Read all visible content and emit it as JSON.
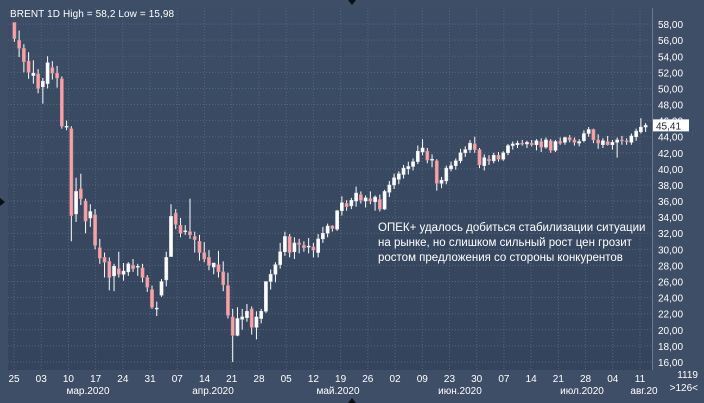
{
  "title": "BRENT 1D High = 58,2 Low = 15,98",
  "annotation": [
    "ОПЕК+ удалось добиться стабилизации ситуации",
    "на рынке, но слишком сильный рост цен грозит",
    "ростом предложения со стороны конкурентов"
  ],
  "footer": {
    "count": "1119",
    "nav": ">126<"
  },
  "colors": {
    "up": "#ffffff",
    "down": "#f4a3a8",
    "wick": "#ffffff",
    "grid": "#56657d",
    "text": "#ffffff",
    "lastPriceBg": "#ffffff"
  },
  "chart_data": {
    "type": "candlestick",
    "title": "BRENT 1D",
    "high": "58,2",
    "low": "15,98",
    "ylim": [
      15.0,
      60.0
    ],
    "y_ticks": [
      "16,00",
      "18,00",
      "20,00",
      "22,00",
      "24,00",
      "26,00",
      "28,00",
      "30,00",
      "32,00",
      "34,00",
      "36,00",
      "38,00",
      "40,00",
      "42,00",
      "44,00",
      "46,00",
      "48,00",
      "50,00",
      "52,00",
      "54,00",
      "56,00",
      "58,00"
    ],
    "last_price_label": "45,41",
    "x_day_ticks": [
      "25",
      "03",
      "10",
      "17",
      "24",
      "31",
      "07",
      "14",
      "21",
      "28",
      "05",
      "12",
      "19",
      "26",
      "02",
      "09",
      "23",
      "30",
      "07",
      "14",
      "21",
      "28",
      "04",
      "11"
    ],
    "x_month_labels": [
      "мар.2020",
      "апр.2020",
      "май.2020",
      "июн.2020",
      "июл.2020",
      "авг.20"
    ],
    "candles": [
      {
        "o": 58.2,
        "h": 58.2,
        "l": 55.8,
        "c": 56.2
      },
      {
        "o": 56.0,
        "h": 57.2,
        "l": 53.9,
        "c": 55.0
      },
      {
        "o": 55.0,
        "h": 55.5,
        "l": 52.0,
        "c": 53.3
      },
      {
        "o": 53.4,
        "h": 54.5,
        "l": 51.2,
        "c": 52.0
      },
      {
        "o": 51.6,
        "h": 53.5,
        "l": 50.6,
        "c": 51.9
      },
      {
        "o": 51.8,
        "h": 52.4,
        "l": 49.4,
        "c": 50.0
      },
      {
        "o": 50.2,
        "h": 51.3,
        "l": 48.1,
        "c": 50.9
      },
      {
        "o": 50.6,
        "h": 54.0,
        "l": 50.0,
        "c": 53.2
      },
      {
        "o": 52.6,
        "h": 53.4,
        "l": 51.1,
        "c": 51.9
      },
      {
        "o": 51.9,
        "h": 52.8,
        "l": 50.1,
        "c": 51.3
      },
      {
        "o": 51.2,
        "h": 51.5,
        "l": 45.0,
        "c": 45.3
      },
      {
        "o": 45.2,
        "h": 46.0,
        "l": 44.8,
        "c": 45.3
      },
      {
        "o": 45.0,
        "h": 45.3,
        "l": 31.0,
        "c": 34.2
      },
      {
        "o": 34.4,
        "h": 38.9,
        "l": 33.4,
        "c": 37.2
      },
      {
        "o": 37.5,
        "h": 39.4,
        "l": 35.5,
        "c": 36.3
      },
      {
        "o": 36.0,
        "h": 36.3,
        "l": 32.0,
        "c": 33.5
      },
      {
        "o": 33.9,
        "h": 35.6,
        "l": 32.8,
        "c": 34.7
      },
      {
        "o": 34.3,
        "h": 35.0,
        "l": 30.0,
        "c": 30.5
      },
      {
        "o": 30.2,
        "h": 31.3,
        "l": 28.2,
        "c": 28.9
      },
      {
        "o": 29.0,
        "h": 29.6,
        "l": 26.5,
        "c": 28.4
      },
      {
        "o": 28.5,
        "h": 29.0,
        "l": 24.9,
        "c": 26.5
      },
      {
        "o": 26.7,
        "h": 28.2,
        "l": 24.8,
        "c": 27.9
      },
      {
        "o": 27.6,
        "h": 29.7,
        "l": 26.5,
        "c": 26.9
      },
      {
        "o": 26.9,
        "h": 28.3,
        "l": 26.1,
        "c": 27.3
      },
      {
        "o": 27.2,
        "h": 28.4,
        "l": 26.7,
        "c": 28.2
      },
      {
        "o": 28.0,
        "h": 28.8,
        "l": 27.2,
        "c": 27.6
      },
      {
        "o": 27.8,
        "h": 28.2,
        "l": 26.7,
        "c": 27.9
      },
      {
        "o": 27.7,
        "h": 28.2,
        "l": 25.9,
        "c": 26.5
      },
      {
        "o": 26.5,
        "h": 26.8,
        "l": 24.7,
        "c": 25.3
      },
      {
        "o": 25.0,
        "h": 25.5,
        "l": 22.6,
        "c": 22.8
      },
      {
        "o": 22.7,
        "h": 23.5,
        "l": 21.7,
        "c": 22.7
      },
      {
        "o": 24.3,
        "h": 26.3,
        "l": 24.1,
        "c": 26.0
      },
      {
        "o": 26.2,
        "h": 29.7,
        "l": 25.4,
        "c": 29.0
      },
      {
        "o": 29.1,
        "h": 35.6,
        "l": 29.1,
        "c": 34.1
      },
      {
        "o": 34.5,
        "h": 35.0,
        "l": 32.5,
        "c": 33.1
      },
      {
        "o": 33.0,
        "h": 33.9,
        "l": 31.5,
        "c": 32.0
      },
      {
        "o": 32.3,
        "h": 33.0,
        "l": 31.8,
        "c": 32.3
      },
      {
        "o": 32.2,
        "h": 36.3,
        "l": 31.3,
        "c": 31.8
      },
      {
        "o": 31.6,
        "h": 32.2,
        "l": 29.6,
        "c": 31.2
      },
      {
        "o": 31.0,
        "h": 31.8,
        "l": 28.6,
        "c": 29.6
      },
      {
        "o": 29.6,
        "h": 30.9,
        "l": 28.4,
        "c": 28.8
      },
      {
        "o": 29.0,
        "h": 29.9,
        "l": 27.4,
        "c": 28.0
      },
      {
        "o": 27.8,
        "h": 28.3,
        "l": 26.9,
        "c": 28.3
      },
      {
        "o": 28.1,
        "h": 29.8,
        "l": 26.5,
        "c": 27.2
      },
      {
        "o": 27.2,
        "h": 28.5,
        "l": 24.8,
        "c": 25.6
      },
      {
        "o": 25.5,
        "h": 27.1,
        "l": 21.4,
        "c": 21.8
      },
      {
        "o": 21.6,
        "h": 22.6,
        "l": 16.0,
        "c": 19.3
      },
      {
        "o": 19.3,
        "h": 22.8,
        "l": 19.2,
        "c": 21.4
      },
      {
        "o": 21.3,
        "h": 22.6,
        "l": 20.0,
        "c": 21.6
      },
      {
        "o": 21.5,
        "h": 23.2,
        "l": 21.0,
        "c": 22.3
      },
      {
        "o": 22.6,
        "h": 22.9,
        "l": 19.4,
        "c": 20.3
      },
      {
        "o": 20.3,
        "h": 22.3,
        "l": 18.8,
        "c": 21.6
      },
      {
        "o": 21.4,
        "h": 22.6,
        "l": 20.8,
        "c": 22.3
      },
      {
        "o": 22.3,
        "h": 26.0,
        "l": 22.1,
        "c": 26.0
      },
      {
        "o": 26.0,
        "h": 27.5,
        "l": 25.0,
        "c": 26.9
      },
      {
        "o": 26.9,
        "h": 28.4,
        "l": 25.9,
        "c": 28.1
      },
      {
        "o": 28.1,
        "h": 30.8,
        "l": 27.6,
        "c": 29.7
      },
      {
        "o": 29.7,
        "h": 32.2,
        "l": 29.2,
        "c": 31.6
      },
      {
        "o": 31.6,
        "h": 31.9,
        "l": 29.0,
        "c": 29.6
      },
      {
        "o": 29.7,
        "h": 31.5,
        "l": 28.8,
        "c": 30.8
      },
      {
        "o": 30.8,
        "h": 31.3,
        "l": 29.5,
        "c": 30.6
      },
      {
        "o": 30.5,
        "h": 31.0,
        "l": 29.7,
        "c": 30.2
      },
      {
        "o": 30.4,
        "h": 31.4,
        "l": 29.5,
        "c": 30.4
      },
      {
        "o": 30.3,
        "h": 30.8,
        "l": 29.0,
        "c": 29.9
      },
      {
        "o": 29.6,
        "h": 31.9,
        "l": 29.0,
        "c": 31.3
      },
      {
        "o": 31.3,
        "h": 32.8,
        "l": 30.8,
        "c": 32.0
      },
      {
        "o": 32.0,
        "h": 33.2,
        "l": 31.5,
        "c": 32.9
      },
      {
        "o": 32.9,
        "h": 33.0,
        "l": 32.2,
        "c": 32.6
      },
      {
        "o": 32.5,
        "h": 34.9,
        "l": 32.3,
        "c": 34.8
      },
      {
        "o": 34.8,
        "h": 36.6,
        "l": 34.2,
        "c": 35.8
      },
      {
        "o": 35.7,
        "h": 36.1,
        "l": 34.8,
        "c": 35.3
      },
      {
        "o": 35.4,
        "h": 36.4,
        "l": 35.0,
        "c": 36.1
      },
      {
        "o": 36.0,
        "h": 37.8,
        "l": 35.3,
        "c": 37.0
      },
      {
        "o": 36.8,
        "h": 37.2,
        "l": 35.7,
        "c": 36.1
      },
      {
        "o": 36.0,
        "h": 36.7,
        "l": 35.2,
        "c": 36.4
      },
      {
        "o": 36.3,
        "h": 37.2,
        "l": 35.6,
        "c": 36.0
      },
      {
        "o": 35.9,
        "h": 36.7,
        "l": 34.8,
        "c": 36.5
      },
      {
        "o": 36.2,
        "h": 36.8,
        "l": 34.7,
        "c": 35.0
      },
      {
        "o": 35.0,
        "h": 37.4,
        "l": 34.9,
        "c": 37.2
      },
      {
        "o": 37.1,
        "h": 38.5,
        "l": 36.5,
        "c": 38.0
      },
      {
        "o": 38.0,
        "h": 39.4,
        "l": 37.5,
        "c": 38.9
      },
      {
        "o": 38.7,
        "h": 39.7,
        "l": 38.1,
        "c": 39.4
      },
      {
        "o": 39.3,
        "h": 40.5,
        "l": 38.8,
        "c": 40.1
      },
      {
        "o": 40.0,
        "h": 40.9,
        "l": 39.3,
        "c": 40.3
      },
      {
        "o": 40.3,
        "h": 41.3,
        "l": 39.8,
        "c": 40.9
      },
      {
        "o": 40.9,
        "h": 42.9,
        "l": 40.6,
        "c": 42.2
      },
      {
        "o": 42.1,
        "h": 43.7,
        "l": 41.7,
        "c": 42.6
      },
      {
        "o": 42.2,
        "h": 42.6,
        "l": 40.7,
        "c": 41.1
      },
      {
        "o": 41.1,
        "h": 41.8,
        "l": 40.2,
        "c": 41.2
      },
      {
        "o": 41.0,
        "h": 41.2,
        "l": 37.3,
        "c": 38.2
      },
      {
        "o": 38.2,
        "h": 39.0,
        "l": 37.6,
        "c": 38.6
      },
      {
        "o": 38.5,
        "h": 40.4,
        "l": 38.1,
        "c": 40.1
      },
      {
        "o": 40.0,
        "h": 40.9,
        "l": 39.7,
        "c": 40.4
      },
      {
        "o": 40.4,
        "h": 41.3,
        "l": 39.9,
        "c": 41.0
      },
      {
        "o": 41.0,
        "h": 42.5,
        "l": 40.7,
        "c": 42.0
      },
      {
        "o": 42.0,
        "h": 42.8,
        "l": 41.5,
        "c": 42.4
      },
      {
        "o": 42.4,
        "h": 43.6,
        "l": 42.0,
        "c": 43.2
      },
      {
        "o": 43.1,
        "h": 44.0,
        "l": 42.0,
        "c": 42.4
      },
      {
        "o": 42.4,
        "h": 42.6,
        "l": 40.1,
        "c": 40.5
      },
      {
        "o": 40.4,
        "h": 41.8,
        "l": 39.8,
        "c": 41.4
      },
      {
        "o": 41.2,
        "h": 41.7,
        "l": 40.5,
        "c": 41.0
      },
      {
        "o": 41.0,
        "h": 42.0,
        "l": 40.7,
        "c": 41.7
      },
      {
        "o": 41.7,
        "h": 42.1,
        "l": 40.9,
        "c": 41.2
      },
      {
        "o": 41.2,
        "h": 42.2,
        "l": 41.0,
        "c": 42.0
      },
      {
        "o": 42.0,
        "h": 43.1,
        "l": 41.7,
        "c": 42.9
      },
      {
        "o": 42.9,
        "h": 43.4,
        "l": 42.4,
        "c": 43.1
      },
      {
        "o": 43.0,
        "h": 43.5,
        "l": 42.6,
        "c": 43.2
      },
      {
        "o": 43.2,
        "h": 43.6,
        "l": 42.9,
        "c": 43.1
      },
      {
        "o": 43.1,
        "h": 43.5,
        "l": 42.6,
        "c": 43.3
      },
      {
        "o": 43.2,
        "h": 43.6,
        "l": 42.8,
        "c": 43.0
      },
      {
        "o": 43.0,
        "h": 43.7,
        "l": 42.3,
        "c": 43.5
      },
      {
        "o": 43.4,
        "h": 43.8,
        "l": 42.1,
        "c": 42.7
      },
      {
        "o": 42.7,
        "h": 43.9,
        "l": 42.5,
        "c": 43.6
      },
      {
        "o": 43.5,
        "h": 43.7,
        "l": 42.0,
        "c": 42.3
      },
      {
        "o": 42.3,
        "h": 43.6,
        "l": 42.1,
        "c": 43.4
      },
      {
        "o": 43.4,
        "h": 43.9,
        "l": 43.0,
        "c": 43.2
      },
      {
        "o": 43.3,
        "h": 44.0,
        "l": 43.0,
        "c": 43.9
      },
      {
        "o": 43.9,
        "h": 44.2,
        "l": 43.3,
        "c": 43.6
      },
      {
        "o": 43.6,
        "h": 43.9,
        "l": 42.9,
        "c": 43.3
      },
      {
        "o": 43.2,
        "h": 43.7,
        "l": 42.8,
        "c": 43.4
      },
      {
        "o": 43.5,
        "h": 44.8,
        "l": 43.3,
        "c": 44.4
      },
      {
        "o": 44.4,
        "h": 45.2,
        "l": 44.0,
        "c": 44.9
      },
      {
        "o": 44.9,
        "h": 45.0,
        "l": 43.2,
        "c": 43.6
      },
      {
        "o": 43.6,
        "h": 44.3,
        "l": 42.5,
        "c": 43.2
      },
      {
        "o": 43.0,
        "h": 43.8,
        "l": 42.6,
        "c": 43.5
      },
      {
        "o": 43.4,
        "h": 44.1,
        "l": 42.9,
        "c": 43.0
      },
      {
        "o": 43.0,
        "h": 43.6,
        "l": 42.4,
        "c": 43.3
      },
      {
        "o": 43.3,
        "h": 43.9,
        "l": 41.4,
        "c": 43.6
      },
      {
        "o": 43.6,
        "h": 44.1,
        "l": 43.0,
        "c": 43.5
      },
      {
        "o": 43.5,
        "h": 43.8,
        "l": 43.0,
        "c": 43.4
      },
      {
        "o": 43.3,
        "h": 44.4,
        "l": 43.0,
        "c": 44.1
      },
      {
        "o": 44.0,
        "h": 45.0,
        "l": 43.5,
        "c": 44.7
      },
      {
        "o": 44.6,
        "h": 46.3,
        "l": 44.4,
        "c": 45.2
      },
      {
        "o": 45.2,
        "h": 45.7,
        "l": 44.6,
        "c": 45.41
      }
    ]
  }
}
